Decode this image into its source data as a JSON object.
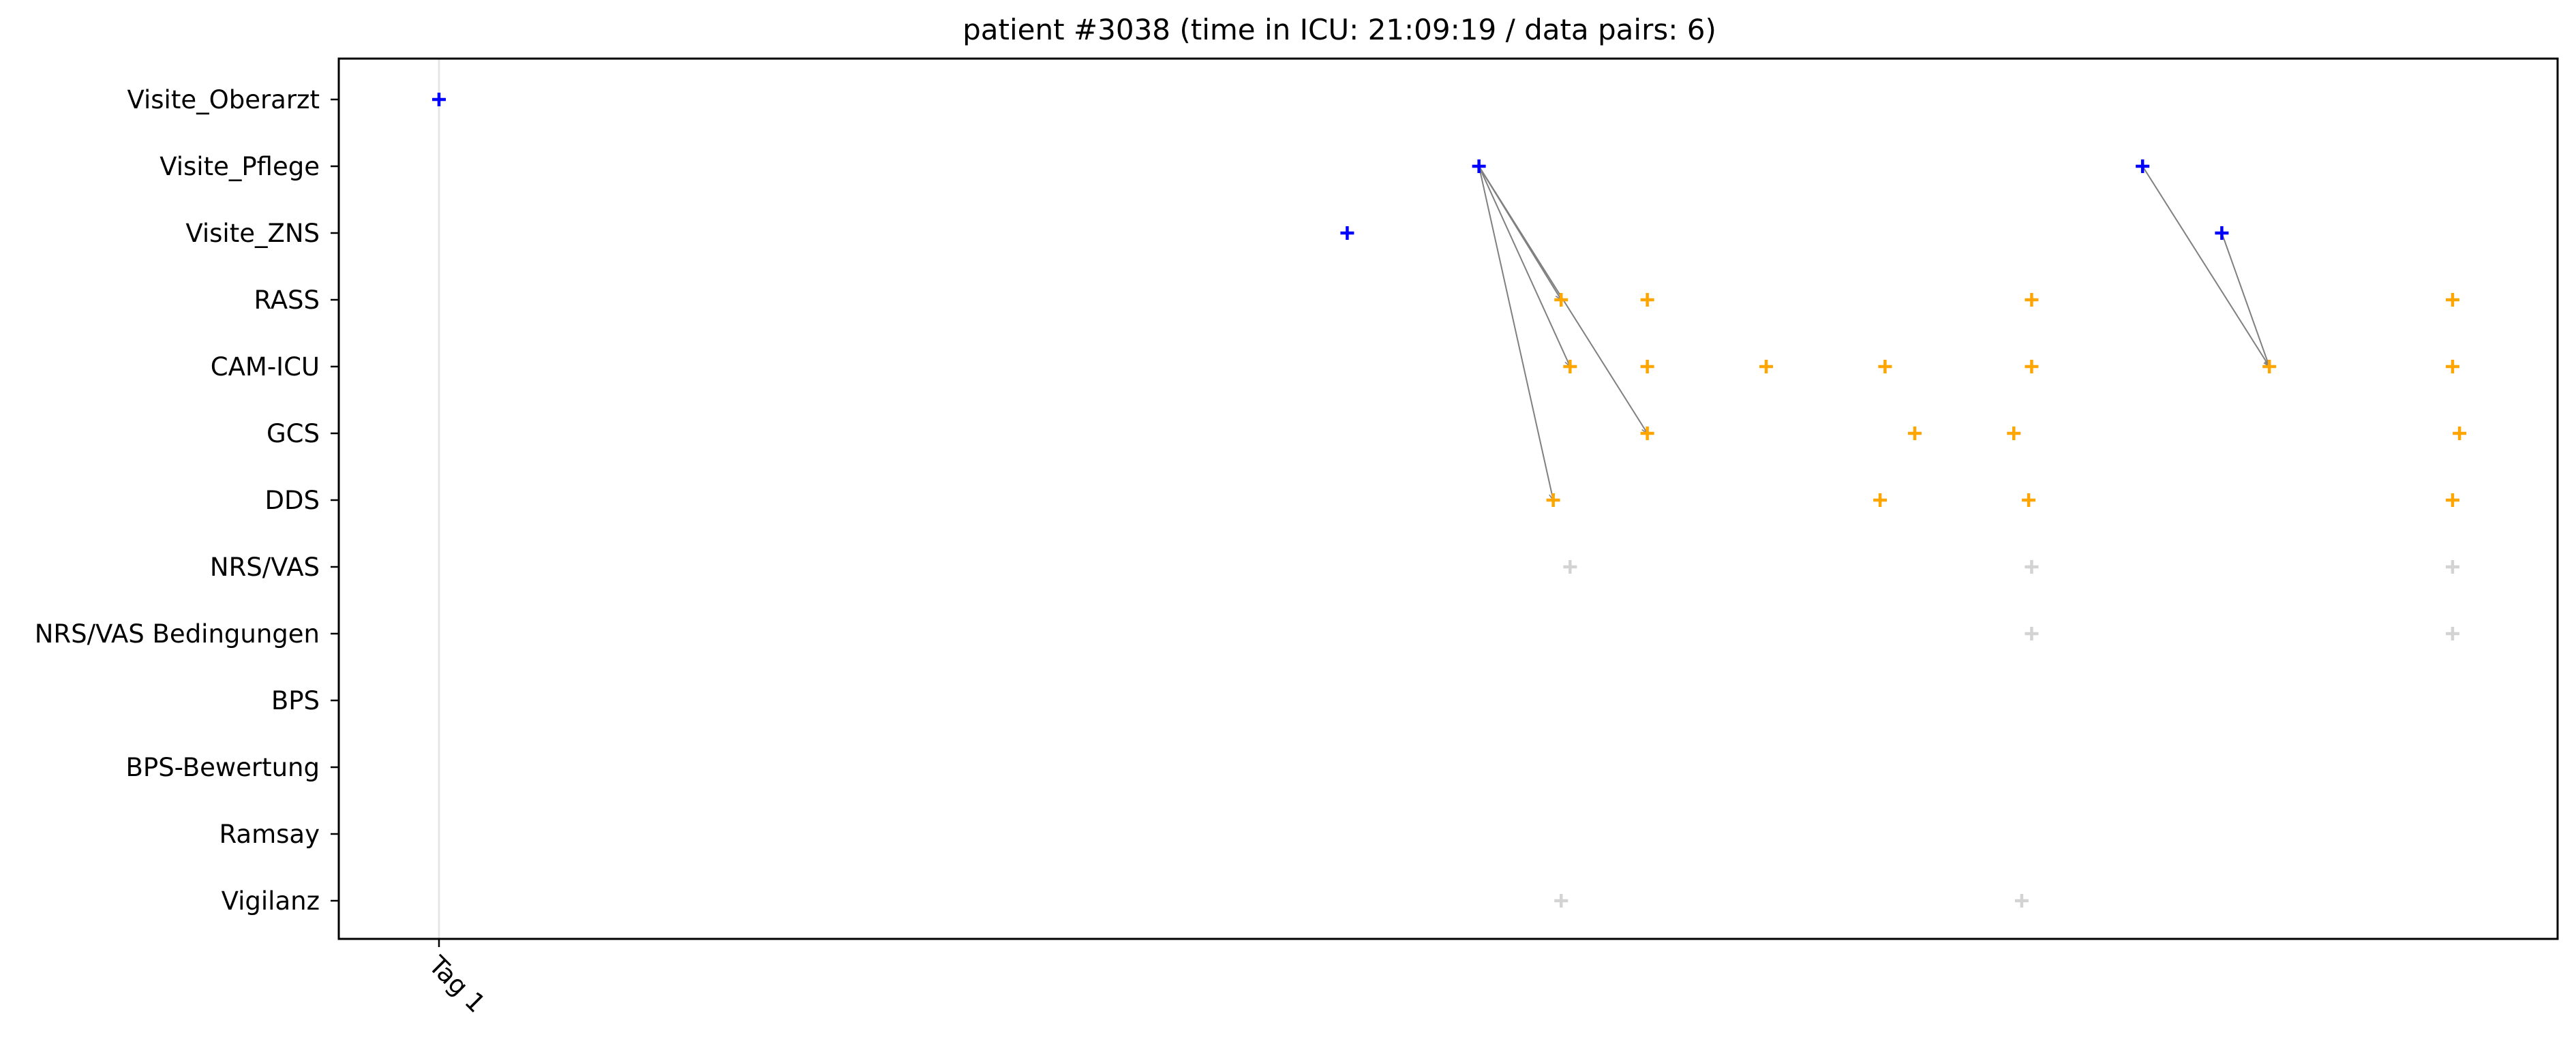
{
  "chart_data": {
    "type": "scatter",
    "title": "patient #3038 (time in ICU: 21:09:19 / data pairs: 6)",
    "xlabel": "",
    "ylabel": "",
    "grid": false,
    "x_unit": "hours since ICU admission",
    "xlim": [
      -1.07,
      21.4
    ],
    "categories": [
      "Visite_Oberarzt",
      "Visite_Pflege",
      "Visite_ZNS",
      "RASS",
      "CAM-ICU",
      "GCS",
      "DDS",
      "NRS/VAS",
      "NRS/VAS Bedingungen",
      "BPS",
      "BPS-Bewertung",
      "Ramsay",
      "Vigilanz"
    ],
    "x_ticks": [
      {
        "label": "Tag 1",
        "x": 0
      }
    ],
    "day_lines": [
      0
    ],
    "colors": {
      "visit": "#0000ff",
      "assessment": "#ffa500",
      "other": "#d3d3d3",
      "arrow": "#808080",
      "day_line": "#e6e6e6"
    },
    "series": [
      {
        "category": "Visite_Oberarzt",
        "color": "#0000ff",
        "x": [
          0.0
        ]
      },
      {
        "category": "Visite_Pflege",
        "color": "#0000ff",
        "x": [
          10.5,
          17.2
        ]
      },
      {
        "category": "Visite_ZNS",
        "color": "#0000ff",
        "x": [
          9.17,
          18.0
        ]
      },
      {
        "category": "RASS",
        "color": "#ffa500",
        "x": [
          11.33,
          12.2,
          16.08,
          20.33
        ]
      },
      {
        "category": "CAM-ICU",
        "color": "#ffa500",
        "x": [
          11.42,
          12.2,
          13.4,
          14.6,
          16.08,
          18.48,
          20.33
        ]
      },
      {
        "category": "GCS",
        "color": "#ffa500",
        "x": [
          12.2,
          14.9,
          15.9,
          20.4
        ]
      },
      {
        "category": "DDS",
        "color": "#ffa500",
        "x": [
          11.25,
          14.55,
          16.05,
          20.33
        ]
      },
      {
        "category": "NRS/VAS",
        "color": "#d3d3d3",
        "x": [
          11.42,
          16.08,
          20.33
        ]
      },
      {
        "category": "NRS/VAS Bedingungen",
        "color": "#d3d3d3",
        "x": [
          16.08,
          20.33
        ]
      },
      {
        "category": "BPS",
        "color": "#d3d3d3",
        "x": []
      },
      {
        "category": "BPS-Bewertung",
        "color": "#d3d3d3",
        "x": []
      },
      {
        "category": "Ramsay",
        "color": "#d3d3d3",
        "x": []
      },
      {
        "category": "Vigilanz",
        "color": "#d3d3d3",
        "x": [
          11.33,
          15.98
        ]
      }
    ],
    "pairs": [
      {
        "from": {
          "category": "Visite_Pflege",
          "x": 10.5
        },
        "to": {
          "category": "RASS",
          "x": 11.33
        }
      },
      {
        "from": {
          "category": "Visite_Pflege",
          "x": 10.5
        },
        "to": {
          "category": "CAM-ICU",
          "x": 11.42
        }
      },
      {
        "from": {
          "category": "Visite_Pflege",
          "x": 10.5
        },
        "to": {
          "category": "GCS",
          "x": 12.2
        }
      },
      {
        "from": {
          "category": "Visite_Pflege",
          "x": 10.5
        },
        "to": {
          "category": "DDS",
          "x": 11.25
        }
      },
      {
        "from": {
          "category": "Visite_Pflege",
          "x": 17.2
        },
        "to": {
          "category": "CAM-ICU",
          "x": 18.48
        }
      },
      {
        "from": {
          "category": "Visite_ZNS",
          "x": 18.0
        },
        "to": {
          "category": "CAM-ICU",
          "x": 18.48
        }
      }
    ]
  }
}
